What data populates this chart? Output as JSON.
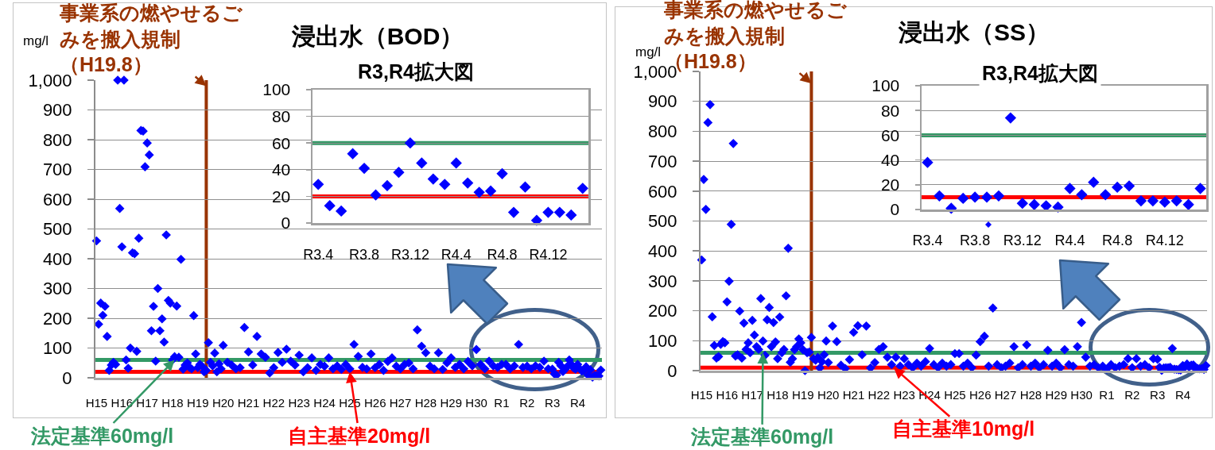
{
  "chart_data": [
    {
      "type": "scatter",
      "title": "浸出水（BOD）",
      "ylabel": "mg/l",
      "x": [
        "2003-04",
        "2003-05",
        "2003-06",
        "2003-07",
        "2003-08",
        "2003-09",
        "2003-10",
        "2003-11",
        "2003-12",
        "2004-01",
        "2004-02",
        "2004-03",
        "2004-04",
        "2004-05",
        "2004-06",
        "2004-07",
        "2004-08",
        "2004-09",
        "2004-10",
        "2004-11",
        "2004-12",
        "2005-01",
        "2005-02",
        "2005-03",
        "2005-04",
        "2005-05",
        "2005-06",
        "2005-07",
        "2005-08",
        "2005-09",
        "2005-10",
        "2005-11",
        "2005-12",
        "2006-01",
        "2006-02",
        "2006-03",
        "2006-04",
        "2006-05",
        "2006-06",
        "2006-07",
        "2006-08",
        "2006-09",
        "2006-10",
        "2006-11",
        "2006-12",
        "2007-01",
        "2007-02",
        "2007-03",
        "2007-04",
        "2007-05",
        "2007-06",
        "2007-07",
        "2007-08",
        "2007-09",
        "2007-10",
        "2007-11",
        "2007-12",
        "2008-01",
        "2008-02",
        "2008-03",
        "2008-04",
        "2008-06",
        "2008-08",
        "2008-10",
        "2008-12",
        "2009-02",
        "2009-04",
        "2009-06",
        "2009-08",
        "2009-10",
        "2009-12",
        "2010-02",
        "2010-04",
        "2010-06",
        "2010-08",
        "2010-10",
        "2010-12",
        "2011-02",
        "2011-04",
        "2011-06",
        "2011-08",
        "2011-10",
        "2011-12",
        "2012-02",
        "2012-04",
        "2012-06",
        "2012-08",
        "2012-10",
        "2012-12",
        "2013-02",
        "2013-04",
        "2013-06",
        "2013-08",
        "2013-10",
        "2013-12",
        "2014-02",
        "2014-04",
        "2014-06",
        "2014-08",
        "2014-10",
        "2014-12",
        "2015-02",
        "2015-04",
        "2015-06",
        "2015-08",
        "2015-10",
        "2015-12",
        "2016-02",
        "2016-04",
        "2016-06",
        "2016-08",
        "2016-10",
        "2016-12",
        "2017-02",
        "2017-04",
        "2017-06",
        "2017-08",
        "2017-10",
        "2017-12",
        "2018-02",
        "2018-04",
        "2018-06",
        "2018-08",
        "2018-10",
        "2018-12",
        "2019-02",
        "2019-04",
        "2019-06",
        "2019-08",
        "2019-10",
        "2019-12",
        "2020-02",
        "2020-04",
        "2020-06",
        "2020-08",
        "2020-10",
        "2020-12",
        "2021-02",
        "2021-04",
        "2021-05",
        "2021-06",
        "2021-07",
        "2021-08",
        "2021-09",
        "2021-10",
        "2021-11",
        "2021-12",
        "2022-01",
        "2022-02",
        "2022-03",
        "2022-04",
        "2022-05",
        "2022-06",
        "2022-07",
        "2022-08",
        "2022-09",
        "2022-10",
        "2022-11",
        "2022-12",
        "2023-01",
        "2023-02",
        "2023-03"
      ],
      "values": [
        460,
        180,
        251,
        210,
        240,
        139,
        25,
        43,
        52,
        45,
        1000,
        569,
        440,
        1000,
        60,
        32,
        100,
        420,
        417,
        89,
        469,
        831,
        829,
        709,
        789,
        749,
        158,
        240,
        56,
        300,
        158,
        198,
        120,
        480,
        260,
        251,
        60,
        71,
        241,
        69,
        398,
        29,
        43,
        50,
        35,
        30,
        209,
        80,
        34,
        45,
        39,
        20,
        25,
        118,
        52,
        40,
        83,
        20,
        47,
        30,
        109,
        52,
        43,
        30,
        34,
        169,
        87,
        43,
        139,
        80,
        69,
        16,
        34,
        85,
        52,
        96,
        56,
        43,
        76,
        20,
        34,
        67,
        25,
        45,
        39,
        67,
        30,
        40,
        28,
        45,
        30,
        112,
        72,
        35,
        30,
        80,
        34,
        45,
        25,
        55,
        67,
        39,
        30,
        45,
        50,
        30,
        161,
        106,
        84,
        39,
        30,
        84,
        28,
        50,
        67,
        35,
        45,
        30,
        55,
        40,
        95,
        45,
        30,
        56,
        40,
        35,
        45,
        45,
        30,
        40,
        112,
        35,
        39,
        30,
        40,
        35,
        56,
        30,
        29,
        13,
        9,
        52,
        41,
        21,
        28,
        38,
        60,
        45,
        33,
        29,
        45,
        30,
        23,
        24,
        37,
        8,
        27,
        2,
        8,
        8,
        6,
        26
      ],
      "color": "#0000ff",
      "marker": "diamond",
      "grid": "y",
      "xlim": [
        "2003-03-16",
        "2023-03-17"
      ],
      "xticks": [
        {
          "value": "2003-04",
          "label": "H15"
        },
        {
          "value": "2004-04",
          "label": "H16"
        },
        {
          "value": "2005-04",
          "label": "H17"
        },
        {
          "value": "2006-04",
          "label": "H18"
        },
        {
          "value": "2007-04",
          "label": "H19"
        },
        {
          "value": "2008-04",
          "label": "H20"
        },
        {
          "value": "2009-04",
          "label": "H21"
        },
        {
          "value": "2010-04",
          "label": "H22"
        },
        {
          "value": "2011-04",
          "label": "H23"
        },
        {
          "value": "2012-04",
          "label": "H24"
        },
        {
          "value": "2013-04",
          "label": "H25"
        },
        {
          "value": "2014-04",
          "label": "H26"
        },
        {
          "value": "2015-04",
          "label": "H27"
        },
        {
          "value": "2016-04",
          "label": "H28"
        },
        {
          "value": "2017-04",
          "label": "H29"
        },
        {
          "value": "2018-04",
          "label": "H30"
        },
        {
          "value": "2019-04",
          "label": "R1"
        },
        {
          "value": "2020-04",
          "label": "R2"
        },
        {
          "value": "2021-04",
          "label": "R3"
        },
        {
          "value": "2022-04",
          "label": "R4"
        }
      ],
      "ylim": [
        0,
        1000
      ],
      "yticks": [
        0,
        100,
        200,
        300,
        400,
        500,
        600,
        700,
        800,
        900,
        {
          "value": 1000,
          "label": "1,000"
        }
      ],
      "ref_lines": [
        {
          "axis": "y",
          "value": 60,
          "color": "#339966"
        },
        {
          "axis": "y",
          "value": 20,
          "color": "#ff0000"
        },
        {
          "axis": "x",
          "value": "2007-08",
          "color": "#993300"
        }
      ],
      "annotations": [
        {
          "text": "事業系の燃やせるごみを搬入規制（H19.8）",
          "x": "2007-08",
          "y": 980
        },
        {
          "text": "法定基準60mg/l",
          "x": "2006-05",
          "y": 60
        },
        {
          "text": "自主基準20mg/l",
          "x": "2013-04",
          "y": 20
        }
      ]
    },
    {
      "type": "scatter",
      "title": "R3,R4拡大図",
      "categories": [
        "R3.4",
        null,
        null,
        null,
        "R3.8",
        null,
        null,
        null,
        "R3.12",
        null,
        null,
        null,
        "R4.4",
        null,
        null,
        null,
        "R4.8",
        null,
        null,
        null,
        "R4.12",
        null,
        null,
        null
      ],
      "values": [
        29,
        13,
        9,
        52,
        41,
        21,
        28,
        38,
        60,
        45,
        33,
        29,
        45,
        30,
        23,
        24,
        37,
        8,
        27,
        2,
        8,
        8,
        6,
        26
      ],
      "color": "#0000ff",
      "marker": "diamond",
      "grid": "y",
      "ylim": [
        0,
        100
      ],
      "yticks": [
        0,
        20,
        40,
        60,
        80,
        100
      ],
      "ref_lines": [
        {
          "axis": "y",
          "value": 60,
          "color": "#339966"
        },
        {
          "axis": "y",
          "value": 20,
          "color": "#ff0000"
        }
      ]
    },
    {
      "type": "scatter",
      "title": "浸出水（SS）",
      "ylabel": "mg/l",
      "x": [
        "2003-04",
        "2003-05",
        "2003-06",
        "2003-07",
        "2003-08",
        "2003-09",
        "2003-10",
        "2003-11",
        "2003-12",
        "2004-01",
        "2004-02",
        "2004-03",
        "2004-04",
        "2004-05",
        "2004-06",
        "2004-07",
        "2004-08",
        "2004-09",
        "2004-10",
        "2004-11",
        "2004-12",
        "2005-01",
        "2005-02",
        "2005-03",
        "2005-04",
        "2005-05",
        "2005-06",
        "2005-07",
        "2005-08",
        "2005-09",
        "2005-10",
        "2005-11",
        "2005-12",
        "2006-01",
        "2006-02",
        "2006-03",
        "2006-04",
        "2006-05",
        "2006-06",
        "2006-07",
        "2006-08",
        "2006-09",
        "2006-10",
        "2006-11",
        "2006-12",
        "2007-01",
        "2007-02",
        "2007-03",
        "2007-04",
        "2007-05",
        "2007-06",
        "2007-07",
        "2007-08",
        "2007-09",
        "2007-10",
        "2007-11",
        "2007-12",
        "2008-01",
        "2008-02",
        "2008-03",
        "2008-04",
        "2008-06",
        "2008-08",
        "2008-10",
        "2008-12",
        "2009-02",
        "2009-04",
        "2009-06",
        "2009-08",
        "2009-10",
        "2009-12",
        "2010-02",
        "2010-04",
        "2010-06",
        "2010-08",
        "2010-10",
        "2010-12",
        "2011-02",
        "2011-04",
        "2011-06",
        "2011-08",
        "2011-10",
        "2011-12",
        "2012-02",
        "2012-04",
        "2012-06",
        "2012-08",
        "2012-10",
        "2012-12",
        "2013-02",
        "2013-04",
        "2013-06",
        "2013-08",
        "2013-10",
        "2013-12",
        "2014-02",
        "2014-04",
        "2014-06",
        "2014-08",
        "2014-10",
        "2014-12",
        "2015-02",
        "2015-04",
        "2015-06",
        "2015-08",
        "2015-10",
        "2015-12",
        "2016-02",
        "2016-04",
        "2016-06",
        "2016-08",
        "2016-10",
        "2016-12",
        "2017-02",
        "2017-04",
        "2017-06",
        "2017-08",
        "2017-10",
        "2017-12",
        "2018-02",
        "2018-04",
        "2018-06",
        "2018-08",
        "2018-10",
        "2018-12",
        "2019-02",
        "2019-04",
        "2019-06",
        "2019-08",
        "2019-10",
        "2019-12",
        "2020-02",
        "2020-04",
        "2020-06",
        "2020-08",
        "2020-10",
        "2020-12",
        "2021-02",
        "2021-04",
        "2021-05",
        "2021-06",
        "2021-07",
        "2021-08",
        "2021-09",
        "2021-10",
        "2021-11",
        "2021-12",
        "2022-01",
        "2022-02",
        "2022-03",
        "2022-04",
        "2022-05",
        "2022-06",
        "2022-07",
        "2022-08",
        "2022-09",
        "2022-10",
        "2022-11",
        "2022-12",
        "2023-01",
        "2023-02",
        "2023-03"
      ],
      "values": [
        370,
        639,
        539,
        829,
        889,
        180,
        84,
        42,
        47,
        88,
        97,
        93,
        230,
        299,
        489,
        759,
        49,
        53,
        199,
        42,
        159,
        71,
        93,
        60,
        168,
        119,
        80,
        71,
        241,
        99,
        51,
        170,
        211,
        80,
        161,
        96,
        40,
        179,
        60,
        71,
        250,
        409,
        28,
        40,
        70,
        80,
        106,
        93,
        70,
        0,
        60,
        62,
        111,
        40,
        35,
        44,
        9,
        30,
        53,
        99,
        27,
        149,
        97,
        18,
        7,
        37,
        128,
        150,
        53,
        149,
        9,
        27,
        71,
        80,
        45,
        20,
        45,
        15,
        40,
        20,
        10,
        25,
        15,
        30,
        74,
        20,
        10,
        25,
        15,
        20,
        57,
        57,
        15,
        25,
        10,
        52,
        97,
        115,
        15,
        209,
        20,
        10,
        15,
        25,
        80,
        10,
        20,
        86,
        15,
        25,
        10,
        20,
        68,
        15,
        25,
        10,
        70,
        20,
        15,
        80,
        161,
        45,
        15,
        20,
        10,
        15,
        5,
        20,
        10,
        15,
        20,
        40,
        10,
        40,
        15,
        20,
        10,
        40,
        38,
        11,
        1,
        9,
        10,
        10,
        11,
        74,
        5,
        4,
        3,
        2,
        17,
        12,
        22,
        12,
        18,
        19,
        7,
        7,
        6,
        7,
        4,
        17
      ],
      "color": "#0000ff",
      "marker": "diamond",
      "grid": "y",
      "xlim": [
        "2003-03-16",
        "2023-03-17"
      ],
      "xticks": [
        {
          "value": "2003-04",
          "label": "H15"
        },
        {
          "value": "2004-04",
          "label": "H16"
        },
        {
          "value": "2005-04",
          "label": "H17"
        },
        {
          "value": "2006-04",
          "label": "H18"
        },
        {
          "value": "2007-04",
          "label": "H19"
        },
        {
          "value": "2008-04",
          "label": "H20"
        },
        {
          "value": "2009-04",
          "label": "H21"
        },
        {
          "value": "2010-04",
          "label": "H22"
        },
        {
          "value": "2011-04",
          "label": "H23"
        },
        {
          "value": "2012-04",
          "label": "H24"
        },
        {
          "value": "2013-04",
          "label": "H25"
        },
        {
          "value": "2014-04",
          "label": "H26"
        },
        {
          "value": "2015-04",
          "label": "H27"
        },
        {
          "value": "2016-04",
          "label": "H28"
        },
        {
          "value": "2017-04",
          "label": "H29"
        },
        {
          "value": "2018-04",
          "label": "H30"
        },
        {
          "value": "2019-04",
          "label": "R1"
        },
        {
          "value": "2020-04",
          "label": "R2"
        },
        {
          "value": "2021-04",
          "label": "R3"
        },
        {
          "value": "2022-04",
          "label": "R4"
        }
      ],
      "ylim": [
        0,
        1000
      ],
      "yticks": [
        0,
        100,
        200,
        300,
        400,
        500,
        600,
        700,
        800,
        900,
        {
          "value": 1000,
          "label": "1,000"
        }
      ],
      "ref_lines": [
        {
          "axis": "y",
          "value": 60,
          "color": "#339966"
        },
        {
          "axis": "y",
          "value": 10,
          "color": "#ff0000"
        },
        {
          "axis": "x",
          "value": "2007-08",
          "color": "#993300"
        }
      ],
      "annotations": [
        {
          "text": "事業系の燃やせるごみを搬入規制（H19.8）",
          "x": "2007-08",
          "y": 960
        },
        {
          "text": "法定基準60mg/l",
          "x": "2005-09",
          "y": 60
        },
        {
          "text": "自主基準10mg/l",
          "x": "2010-11",
          "y": 10
        }
      ]
    },
    {
      "type": "scatter",
      "title": "R3,R4拡大図",
      "categories": [
        "R3.4",
        null,
        null,
        null,
        "R3.8",
        null,
        null,
        null,
        "R3.12",
        null,
        null,
        null,
        "R4.4",
        null,
        null,
        null,
        "R4.8",
        null,
        null,
        null,
        "R4.12",
        null,
        null,
        null
      ],
      "values": [
        38,
        11,
        1,
        9,
        10,
        10,
        11,
        74,
        5,
        4,
        3,
        2,
        17,
        12,
        22,
        12,
        18,
        19,
        7,
        7,
        6,
        7,
        4,
        17
      ],
      "color": "#0000ff",
      "marker": "diamond",
      "grid": "y",
      "ylim": [
        0,
        100
      ],
      "yticks": [
        0,
        20,
        40,
        60,
        80,
        100
      ],
      "ref_lines": [
        {
          "axis": "y",
          "value": 60,
          "color": "#339966"
        },
        {
          "axis": "y",
          "value": 10,
          "color": "#ff0000"
        }
      ]
    }
  ]
}
